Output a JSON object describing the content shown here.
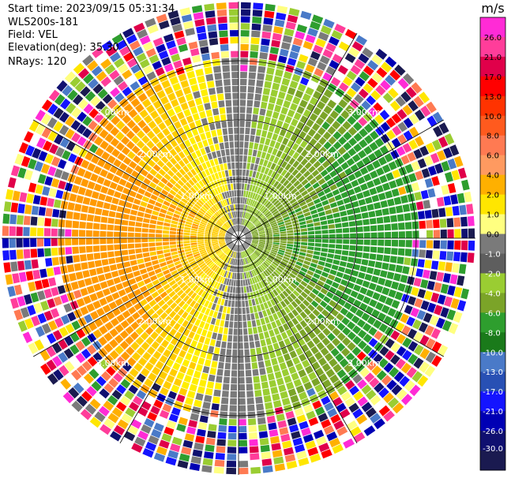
{
  "header": {
    "start_time": "Start time: 2023/09/15 05:31:34",
    "instrument": "WLS200s-181",
    "field": "Field: VEL",
    "elevation": "Elevation(deg): 35.30",
    "nrays": "NRays: 120"
  },
  "chart_data": {
    "type": "heatmap",
    "projection": "polar (PPI scan)",
    "field": "VEL",
    "units": "m/s",
    "n_rays": 120,
    "elevation_deg": 35.3,
    "colorbar": {
      "label": "m/s",
      "ticks": [
        "26.0",
        "21.0",
        "17.0",
        "13.0",
        "10.0",
        "8.0",
        "6.0",
        "4.0",
        "2.0",
        "1.0",
        "0.0",
        "-1.0",
        "-2.0",
        "-4.0",
        "-6.0",
        "-8.0",
        "-10.0",
        "-13.0",
        "-17.0",
        "-21.0",
        "-26.0",
        "-30.0"
      ],
      "colors": [
        "#ff2bd6",
        "#ff3d9a",
        "#e0004a",
        "#ff0000",
        "#ff3300",
        "#ff5a1e",
        "#ff7a52",
        "#ff9a60",
        "#ffb000",
        "#ffe600",
        "#ffff80",
        "#7a7a7a",
        "#5e5e5e",
        "#9acd32",
        "#7ba428",
        "#2e9e2e",
        "#1a7a1a",
        "#4a7ac8",
        "#2850b4",
        "#1414ff",
        "#0000b4",
        "#101070",
        "#1a1a50"
      ]
    },
    "range_rings": [
      "1.00km",
      "2.00km",
      "3.00km"
    ],
    "max_range_km": 4.0,
    "spokes_deg": [
      0,
      30,
      60,
      90,
      120,
      150,
      180,
      210,
      240,
      270,
      300,
      330
    ],
    "ring_label_angles_deg": [
      45,
      135,
      225,
      315
    ],
    "pattern": "near-field approaching/receding dipole: positive (yellow/orange) to the west, negative (green) to the east, noisy random colors beyond about 3 km"
  }
}
